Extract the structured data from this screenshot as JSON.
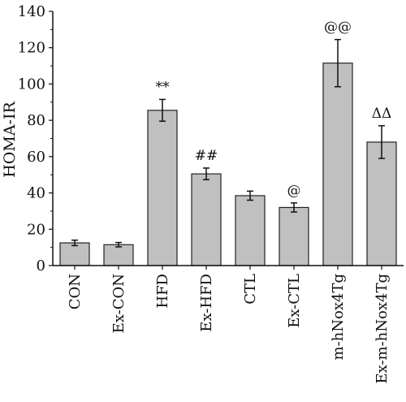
{
  "chart_data": {
    "type": "bar",
    "title": "",
    "xlabel": "",
    "ylabel": "HOMA-IR",
    "ylim": [
      0,
      140
    ],
    "yticks": [
      0,
      20,
      40,
      60,
      80,
      100,
      120,
      140
    ],
    "grid": false,
    "categories": [
      "CON",
      "Ex-CON",
      "HFD",
      "Ex-HFD",
      "CTL",
      "Ex-CTL",
      "m-hNox4Tg",
      "Ex-m-hNox4Tg"
    ],
    "values": [
      12.5,
      11.5,
      85.5,
      50.5,
      38.5,
      32,
      111.5,
      68
    ],
    "errors": [
      1.5,
      1.2,
      6,
      3.2,
      2.5,
      2.5,
      13,
      9
    ],
    "annotations": [
      "",
      "",
      "**",
      "##",
      "",
      "@",
      "@@",
      "ΔΔ"
    ],
    "bar_color": "#c0c0c0",
    "edge_color": "#222222"
  }
}
